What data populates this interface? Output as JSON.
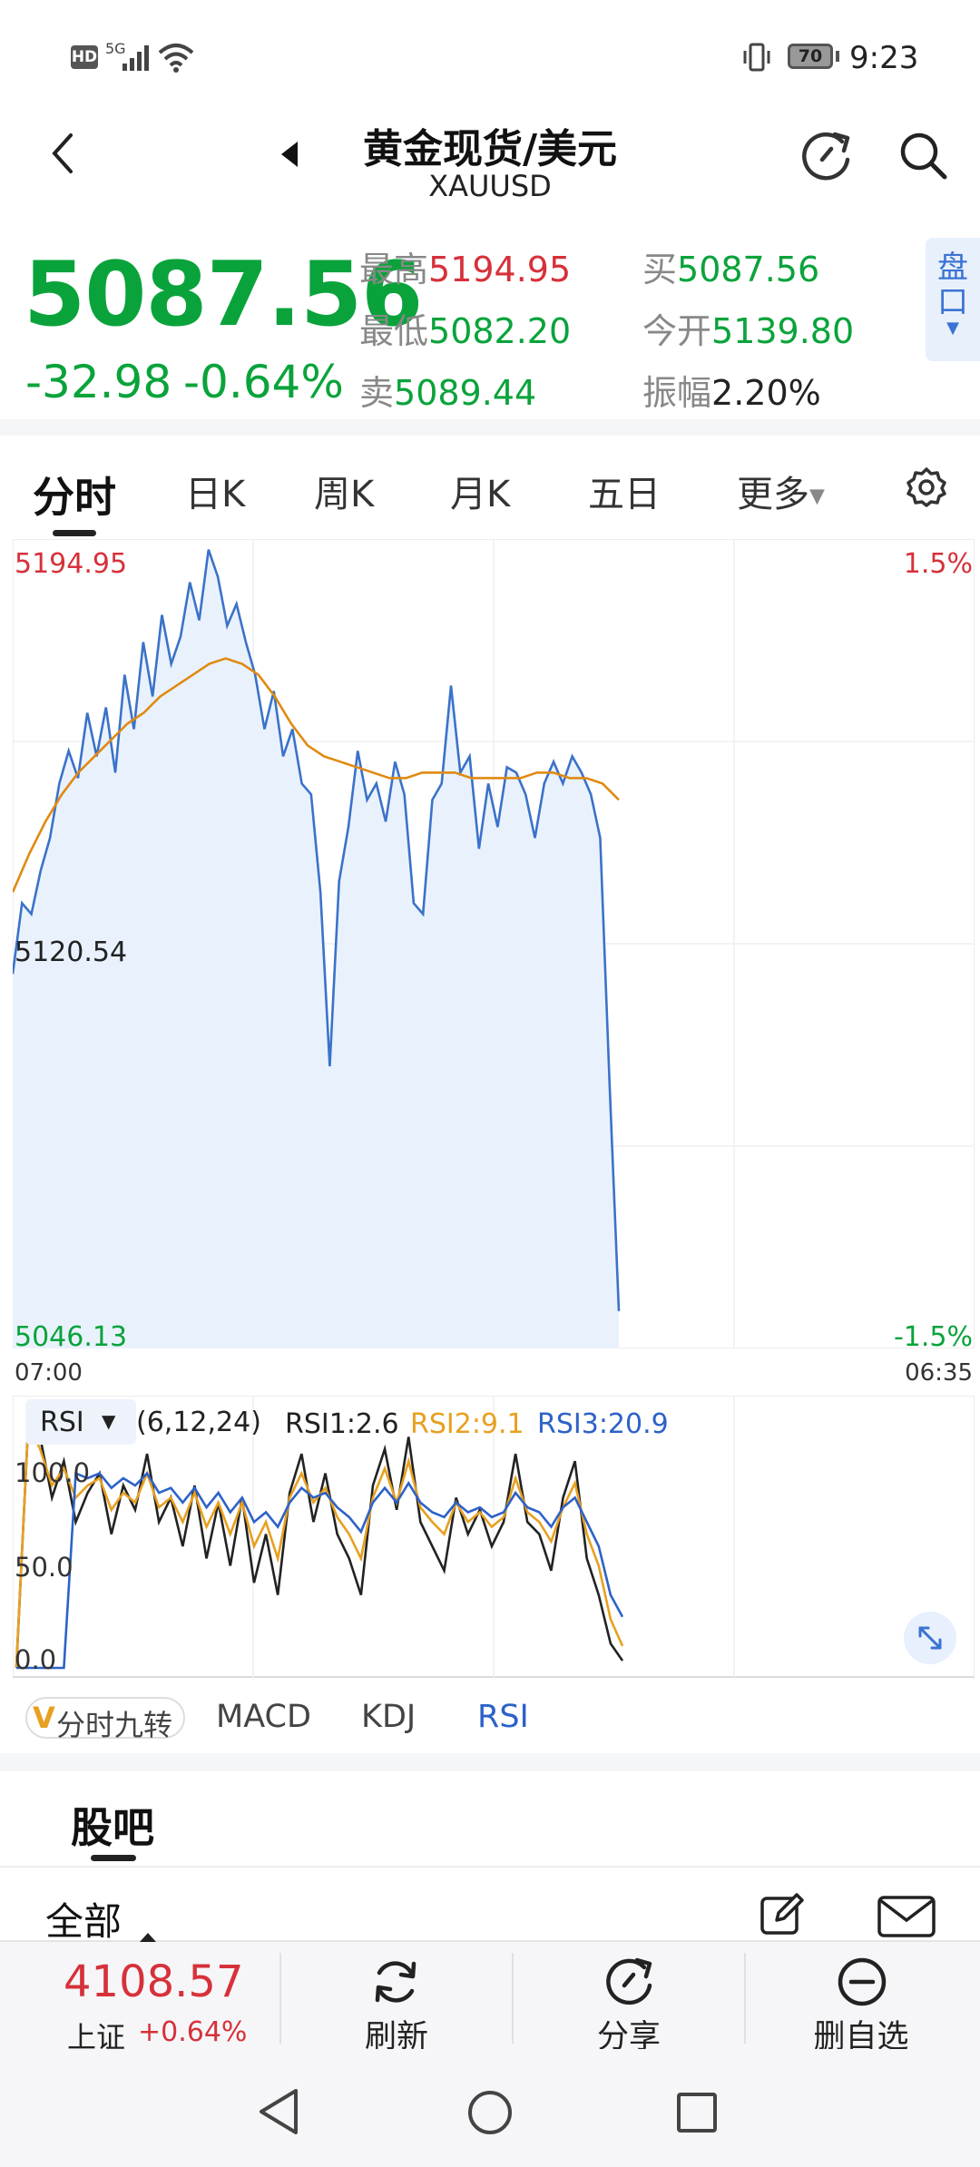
{
  "status_bar": {
    "network_badge": "HD",
    "signal_label": "5G",
    "battery": "70",
    "time": "9:23"
  },
  "header": {
    "title": "黄金现货/美元",
    "symbol": "XAUUSD"
  },
  "quote": {
    "price": "5087.56",
    "change": "-32.98",
    "change_pct": "-0.64%",
    "high_label": "最高",
    "high": "5194.95",
    "low_label": "最低",
    "low": "5082.20",
    "sell_label": "卖",
    "sell": "5089.44",
    "buy_label": "买",
    "buy": "5087.56",
    "open_label": "今开",
    "open": "5139.80",
    "amp_label": "振幅",
    "amp": "2.20%",
    "pankou_label": "盘口"
  },
  "tabs": [
    "分时",
    "日K",
    "周K",
    "月K",
    "五日",
    "更多"
  ],
  "chart_data": [
    {
      "type": "line",
      "x_start": "07:00",
      "x_end": "06:35",
      "ylim": [
        5046.13,
        5194.95
      ],
      "y_labels": {
        "top": "5194.95",
        "mid": "5120.54",
        "bottom": "5046.13"
      },
      "pct_labels": {
        "top": "1.5%",
        "bottom": "-1.5%"
      },
      "series": [
        {
          "name": "price",
          "color": "#3b72c9",
          "values": [
            5115,
            5128,
            5126,
            5134,
            5140,
            5150,
            5156,
            5151,
            5163,
            5155,
            5164,
            5152,
            5170,
            5160,
            5176,
            5166,
            5181,
            5172,
            5177,
            5187,
            5180,
            5193,
            5188,
            5179,
            5183,
            5176,
            5170,
            5160,
            5167,
            5155,
            5160,
            5150,
            5148,
            5130,
            5098,
            5132,
            5142,
            5156,
            5147,
            5150,
            5143,
            5154,
            5148,
            5128,
            5126,
            5147,
            5150,
            5168,
            5152,
            5155,
            5138,
            5150,
            5142,
            5153,
            5152,
            5148,
            5140,
            5150,
            5154,
            5150,
            5155,
            5152,
            5148,
            5140,
            5095,
            5053
          ]
        },
        {
          "name": "avg",
          "color": "#e08a12",
          "values": [
            5130,
            5137,
            5143,
            5148,
            5152,
            5155,
            5158,
            5161,
            5163,
            5166,
            5168,
            5170,
            5172,
            5173,
            5172,
            5170,
            5166,
            5161,
            5157,
            5155,
            5154,
            5153,
            5152,
            5151,
            5151,
            5152,
            5152,
            5152,
            5151,
            5151,
            5151,
            5151,
            5152,
            5152,
            5151,
            5151,
            5150,
            5147
          ]
        }
      ]
    },
    {
      "type": "line",
      "title": "RSI",
      "params": "(6,12,24)",
      "ylim": [
        0,
        100
      ],
      "y_ticks": [
        "100.0",
        "50.0",
        "0.0"
      ],
      "series": [
        {
          "name": "RSI1:2.6",
          "color": "#222222",
          "values": [
            0,
            100,
            95,
            70,
            85,
            60,
            72,
            80,
            55,
            75,
            65,
            88,
            60,
            70,
            50,
            75,
            45,
            68,
            42,
            70,
            35,
            55,
            30,
            72,
            88,
            60,
            80,
            55,
            45,
            30,
            75,
            90,
            65,
            95,
            60,
            50,
            40,
            70,
            55,
            65,
            50,
            60,
            88,
            60,
            55,
            40,
            70,
            85,
            45,
            30,
            10,
            3
          ]
        },
        {
          "name": "RSI2:9.1",
          "color": "#e8a020",
          "values": [
            0,
            100,
            90,
            75,
            82,
            70,
            75,
            78,
            65,
            72,
            68,
            80,
            66,
            70,
            60,
            72,
            58,
            68,
            55,
            68,
            50,
            60,
            45,
            70,
            80,
            68,
            74,
            62,
            55,
            45,
            70,
            82,
            68,
            85,
            66,
            60,
            55,
            68,
            60,
            64,
            58,
            62,
            78,
            64,
            60,
            52,
            66,
            76,
            55,
            42,
            20,
            9
          ]
        },
        {
          "name": "RSI3:20.9",
          "color": "#2d62c8",
          "values": [
            0,
            0,
            0,
            0,
            0,
            80,
            78,
            80,
            74,
            78,
            75,
            80,
            72,
            74,
            68,
            74,
            66,
            72,
            64,
            70,
            60,
            64,
            58,
            68,
            74,
            70,
            72,
            66,
            62,
            56,
            68,
            74,
            68,
            76,
            68,
            64,
            62,
            68,
            64,
            66,
            62,
            64,
            72,
            66,
            64,
            58,
            66,
            70,
            60,
            50,
            30,
            21
          ]
        }
      ]
    }
  ],
  "indicator_tabs": {
    "nine": "分时九转",
    "nine_mark": "V",
    "macd": "MACD",
    "kdj": "KDJ",
    "rsi": "RSI"
  },
  "forum": {
    "title": "股吧",
    "filter": "全部"
  },
  "bottom_bar": {
    "index_value": "4108.57",
    "index_name": "上证",
    "index_change": "+0.64%",
    "refresh": "刷新",
    "share": "分享",
    "remove": "删自选"
  }
}
